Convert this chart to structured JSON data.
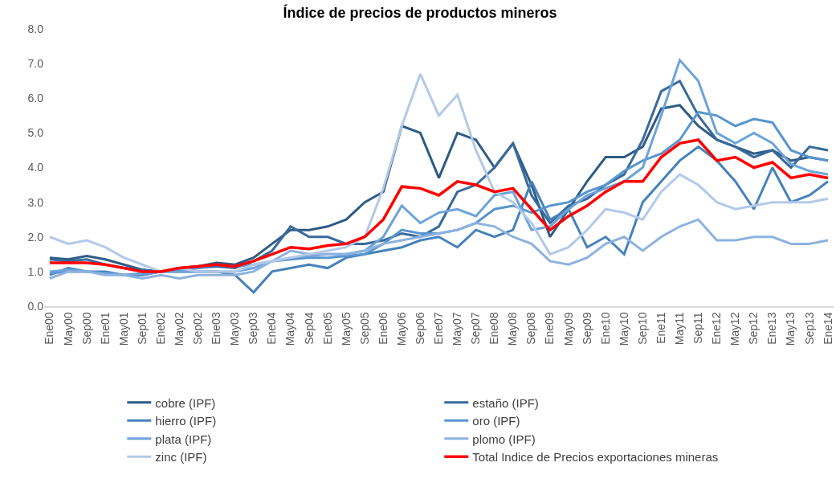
{
  "chart_data": {
    "type": "line",
    "title": "Índice de precios de productos mineros",
    "categories": [
      "Ene00",
      "May00",
      "Sep00",
      "Ene01",
      "May01",
      "Sep01",
      "Ene02",
      "May02",
      "Sep02",
      "Ene03",
      "May03",
      "Sep03",
      "Ene04",
      "May04",
      "Sep04",
      "Ene05",
      "May05",
      "Sep05",
      "Ene06",
      "May06",
      "Sep06",
      "Ene07",
      "May07",
      "Sep07",
      "Ene08",
      "May08",
      "Sep08",
      "Ene09",
      "May09",
      "Sep09",
      "Ene10",
      "May10",
      "Sep10",
      "Ene11",
      "May11",
      "Sep11",
      "Ene12",
      "May12",
      "Sep12",
      "Ene13",
      "May13",
      "Sep13",
      "Ene14"
    ],
    "series": [
      {
        "name": "cobre (IPF)",
        "color": "#2e5b85",
        "values": [
          1.4,
          1.35,
          1.45,
          1.35,
          1.2,
          1.05,
          1.0,
          1.1,
          1.15,
          1.25,
          1.2,
          1.4,
          1.8,
          2.2,
          2.2,
          2.3,
          2.5,
          3.0,
          3.3,
          5.2,
          5.0,
          3.7,
          5.0,
          4.8,
          4.0,
          4.7,
          3.5,
          2.0,
          2.8,
          3.6,
          4.3,
          4.3,
          4.6,
          5.7,
          5.8,
          5.2,
          4.8,
          4.6,
          4.4,
          4.5,
          4.2,
          4.3,
          4.2
        ]
      },
      {
        "name": "estaño (IPF)",
        "color": "#386a9b",
        "values": [
          1.35,
          1.3,
          1.35,
          1.2,
          1.1,
          1.05,
          1.0,
          1.05,
          1.1,
          1.15,
          1.1,
          1.3,
          1.6,
          2.3,
          2.0,
          2.0,
          1.8,
          1.8,
          1.9,
          2.1,
          2.0,
          2.3,
          3.3,
          3.5,
          4.0,
          4.7,
          3.2,
          2.4,
          2.9,
          3.1,
          3.5,
          3.8,
          4.8,
          6.2,
          6.5,
          5.5,
          4.8,
          4.6,
          4.3,
          4.5,
          4.0,
          4.6,
          4.5
        ]
      },
      {
        "name": "hierro (IPF)",
        "color": "#4682bb",
        "values": [
          0.9,
          1.1,
          1.0,
          1.0,
          0.9,
          0.9,
          1.0,
          1.0,
          1.0,
          1.0,
          0.9,
          0.4,
          1.0,
          1.1,
          1.2,
          1.1,
          1.4,
          1.5,
          1.6,
          1.7,
          1.9,
          2.0,
          1.7,
          2.2,
          2.0,
          2.2,
          3.6,
          2.5,
          2.8,
          1.7,
          2.0,
          1.5,
          3.0,
          3.6,
          4.2,
          4.6,
          4.2,
          3.6,
          2.8,
          4.0,
          3.0,
          3.2,
          3.6
        ]
      },
      {
        "name": "oro (IPF)",
        "color": "#5895d0",
        "values": [
          0.95,
          1.0,
          1.0,
          0.95,
          0.9,
          0.9,
          1.0,
          1.05,
          1.1,
          1.2,
          1.15,
          1.2,
          1.3,
          1.35,
          1.4,
          1.4,
          1.45,
          1.5,
          1.8,
          2.2,
          2.1,
          2.1,
          2.2,
          2.4,
          2.8,
          2.9,
          2.7,
          2.9,
          3.0,
          3.3,
          3.5,
          3.9,
          4.2,
          4.4,
          4.8,
          5.6,
          5.5,
          5.2,
          5.4,
          5.3,
          4.5,
          4.3,
          4.2
        ]
      },
      {
        "name": "plata (IPF)",
        "color": "#6ca3da",
        "values": [
          1.0,
          1.05,
          1.0,
          0.95,
          0.9,
          0.95,
          1.0,
          1.0,
          1.0,
          1.0,
          1.0,
          1.1,
          1.3,
          1.4,
          1.45,
          1.5,
          1.5,
          1.6,
          2.0,
          2.9,
          2.4,
          2.7,
          2.8,
          2.6,
          3.2,
          3.3,
          2.2,
          2.3,
          2.8,
          3.2,
          3.4,
          3.6,
          4.0,
          5.5,
          7.1,
          6.5,
          5.0,
          4.7,
          5.0,
          4.7,
          4.1,
          3.9,
          3.8
        ]
      },
      {
        "name": "plomo (IPF)",
        "color": "#8db2df",
        "values": [
          0.8,
          1.0,
          1.0,
          0.9,
          0.9,
          0.8,
          0.9,
          0.8,
          0.9,
          0.9,
          0.9,
          1.0,
          1.3,
          1.6,
          1.5,
          1.5,
          1.5,
          1.6,
          1.8,
          1.9,
          2.0,
          2.1,
          2.2,
          2.4,
          2.3,
          2.0,
          1.8,
          1.3,
          1.2,
          1.4,
          1.8,
          2.0,
          1.6,
          2.0,
          2.3,
          2.5,
          1.9,
          1.9,
          2.0,
          2.0,
          1.8,
          1.8,
          1.9
        ]
      },
      {
        "name": "zinc (IPF)",
        "color": "#b3c9e8",
        "values": [
          2.0,
          1.8,
          1.9,
          1.7,
          1.4,
          1.2,
          1.0,
          1.1,
          1.0,
          1.0,
          1.0,
          1.2,
          1.3,
          1.4,
          1.5,
          1.6,
          1.7,
          2.0,
          3.4,
          5.2,
          6.7,
          5.5,
          6.1,
          4.5,
          3.3,
          3.0,
          2.4,
          1.5,
          1.7,
          2.2,
          2.8,
          2.7,
          2.5,
          3.3,
          3.8,
          3.5,
          3.0,
          2.8,
          2.9,
          3.0,
          3.0,
          3.0,
          3.1
        ]
      },
      {
        "name": "Total Indice de Precios exportaciones mineras",
        "color": "#ff0000",
        "values": [
          1.25,
          1.25,
          1.25,
          1.2,
          1.1,
          1.0,
          1.0,
          1.1,
          1.15,
          1.2,
          1.15,
          1.3,
          1.5,
          1.7,
          1.65,
          1.75,
          1.8,
          2.0,
          2.5,
          3.45,
          3.4,
          3.2,
          3.6,
          3.5,
          3.3,
          3.4,
          2.8,
          2.2,
          2.6,
          2.9,
          3.3,
          3.6,
          3.6,
          4.3,
          4.7,
          4.8,
          4.2,
          4.3,
          4.0,
          4.15,
          3.7,
          3.8,
          3.7
        ]
      }
    ],
    "ylim": [
      0,
      8
    ],
    "yticks": [
      {
        "value": 0,
        "label": "0.0"
      },
      {
        "value": 1,
        "label": "1.0"
      },
      {
        "value": 2,
        "label": "2.0"
      },
      {
        "value": 3,
        "label": "3.0"
      },
      {
        "value": 4,
        "label": "4.0"
      },
      {
        "value": 5,
        "label": "5.0"
      },
      {
        "value": 6,
        "label": "6.0"
      },
      {
        "value": 7,
        "label": "7.0"
      },
      {
        "value": 8,
        "label": "8.0"
      }
    ],
    "grid": false,
    "legend": "bottom",
    "marker": "none",
    "line_style": "solid"
  }
}
